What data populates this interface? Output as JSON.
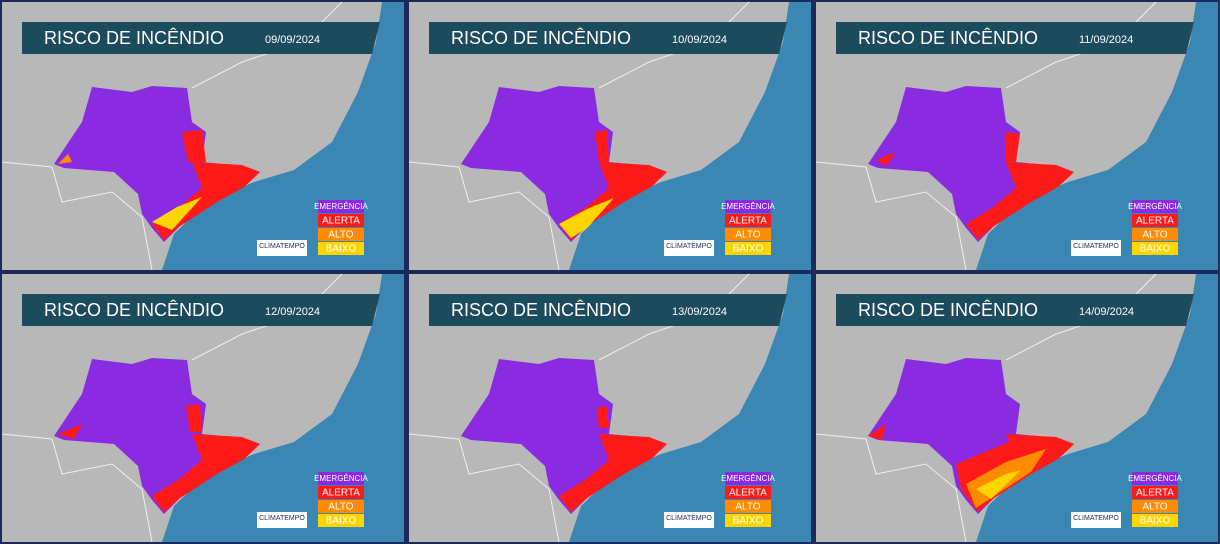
{
  "panels": [
    {
      "title": "RISCO DE INCÊNDIO",
      "date": "09/09/2024"
    },
    {
      "title": "RISCO DE INCÊNDIO",
      "date": "10/09/2024"
    },
    {
      "title": "RISCO DE INCÊNDIO",
      "date": "11/09/2024"
    },
    {
      "title": "RISCO DE INCÊNDIO",
      "date": "12/09/2024"
    },
    {
      "title": "RISCO DE INCÊNDIO",
      "date": "13/09/2024"
    },
    {
      "title": "RISCO DE INCÊNDIO",
      "date": "14/09/2024"
    }
  ],
  "legend": [
    {
      "label": "EMERGÊNCIA",
      "color": "#8a2be2"
    },
    {
      "label": "ALERTA",
      "color": "#ff1a1a"
    },
    {
      "label": "ALTO",
      "color": "#ff8c00"
    },
    {
      "label": "BAIXO",
      "color": "#ffd500"
    }
  ],
  "logo": "CLIMATEMPO"
}
